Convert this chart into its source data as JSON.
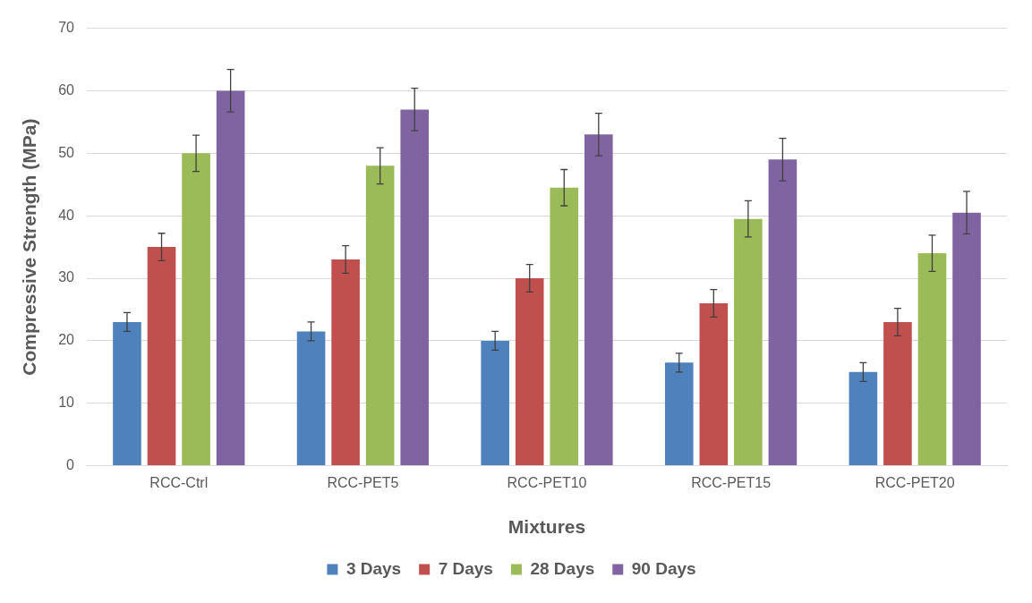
{
  "chart_data": {
    "type": "bar",
    "xlabel": "Mixtures",
    "ylabel": "Compressive Strength (MPa)",
    "categories": [
      "RCC-Ctrl",
      "RCC-PET5",
      "RCC-PET10",
      "RCC-PET15",
      "RCC-PET20"
    ],
    "series": [
      {
        "name": "3 Days",
        "color": "#4f81bd",
        "values": [
          23,
          21.5,
          20,
          16.5,
          15
        ],
        "errors": [
          1.5,
          1.5,
          1.5,
          1.5,
          1.5
        ]
      },
      {
        "name": "7 Days",
        "color": "#c0504d",
        "values": [
          35,
          33,
          30,
          26,
          23
        ],
        "errors": [
          2.2,
          2.2,
          2.2,
          2.2,
          2.2
        ]
      },
      {
        "name": "28 Days",
        "color": "#9bbb59",
        "values": [
          50,
          48,
          44.5,
          39.5,
          34
        ],
        "errors": [
          2.9,
          2.9,
          2.9,
          2.9,
          2.9
        ]
      },
      {
        "name": "90 Days",
        "color": "#8064a2",
        "values": [
          60,
          57,
          53,
          49,
          40.5
        ],
        "errors": [
          3.4,
          3.4,
          3.4,
          3.4,
          3.4
        ]
      }
    ],
    "ylim": [
      0,
      70
    ],
    "yticks": [
      0,
      10,
      20,
      30,
      40,
      50,
      60,
      70
    ],
    "grid": "y",
    "legend": "bottom"
  }
}
